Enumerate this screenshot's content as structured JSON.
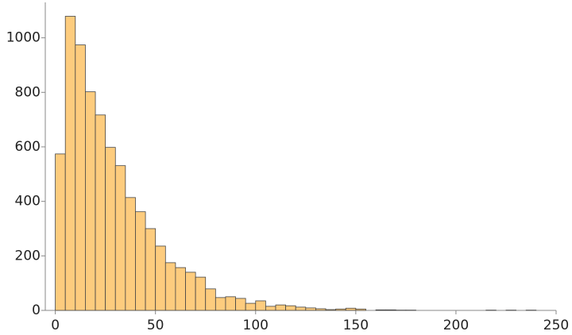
{
  "chart_data": {
    "type": "histogram",
    "bins": [
      0,
      5,
      10,
      15,
      20,
      25,
      30,
      35,
      40,
      45,
      50,
      55,
      60,
      65,
      70,
      75,
      80,
      85,
      90,
      95,
      100,
      105,
      110,
      115,
      120,
      125,
      130,
      135,
      140,
      145,
      150,
      155,
      160,
      165,
      170,
      175,
      180,
      185,
      190,
      195,
      200,
      205,
      210,
      215,
      220,
      225,
      230,
      235,
      240
    ],
    "counts": [
      574,
      1079,
      974,
      802,
      717,
      598,
      531,
      414,
      362,
      300,
      236,
      175,
      157,
      140,
      122,
      79,
      47,
      50,
      44,
      26,
      35,
      15,
      20,
      17,
      12,
      9,
      6,
      3,
      5,
      8,
      5,
      0,
      2,
      2,
      1,
      1,
      0,
      0,
      0,
      0,
      0,
      0,
      0,
      1,
      0,
      1,
      0,
      1
    ],
    "color": "#fdcc7e",
    "xlim": [
      -5,
      250
    ],
    "ylim": [
      0,
      1130
    ],
    "xticks": [
      0,
      50,
      100,
      150,
      200,
      250
    ],
    "yticks": [
      0,
      200,
      400,
      600,
      800,
      1000
    ]
  }
}
